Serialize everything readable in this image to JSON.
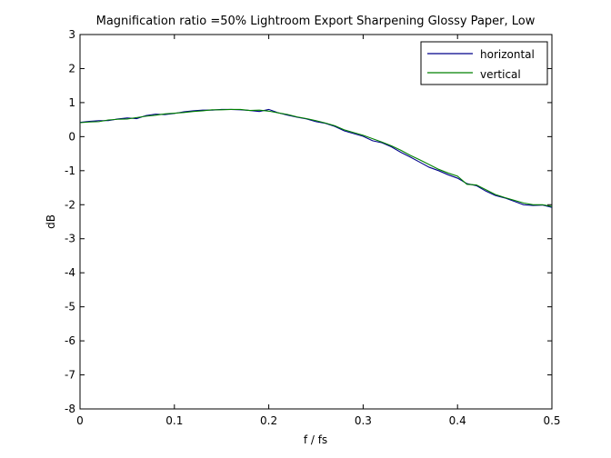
{
  "chart_data": {
    "type": "line",
    "title": "Magnification ratio =50% Lightroom Export Sharpening Glossy Paper, Low",
    "xlabel": "f / fs",
    "ylabel": "dB",
    "xlim": [
      0,
      0.5
    ],
    "ylim": [
      -8,
      3
    ],
    "xticks": [
      0,
      0.1,
      0.2,
      0.3,
      0.4,
      0.5
    ],
    "xtick_labels": [
      "0",
      "0.1",
      "0.2",
      "0.3",
      "0.4",
      "0.5"
    ],
    "yticks": [
      3,
      2,
      1,
      0,
      -1,
      -2,
      -3,
      -4,
      -5,
      -6,
      -7,
      -8
    ],
    "ytick_labels": [
      "3",
      "2",
      "1",
      "0",
      "-1",
      "-2",
      "-3",
      "-4",
      "-5",
      "-6",
      "-7",
      "-8"
    ],
    "grid": false,
    "legend_position": "top-right",
    "series": [
      {
        "name": "horizontal",
        "color": "#00008B",
        "x": [
          0,
          0.01,
          0.02,
          0.03,
          0.04,
          0.05,
          0.06,
          0.07,
          0.08,
          0.09,
          0.1,
          0.11,
          0.12,
          0.13,
          0.14,
          0.15,
          0.16,
          0.17,
          0.18,
          0.19,
          0.2,
          0.21,
          0.22,
          0.23,
          0.24,
          0.25,
          0.26,
          0.27,
          0.28,
          0.29,
          0.3,
          0.31,
          0.32,
          0.33,
          0.34,
          0.35,
          0.36,
          0.37,
          0.38,
          0.39,
          0.4,
          0.41,
          0.42,
          0.43,
          0.44,
          0.45,
          0.46,
          0.47,
          0.48,
          0.49,
          0.5
        ],
        "values": [
          0.42,
          0.45,
          0.47,
          0.47,
          0.52,
          0.55,
          0.53,
          0.62,
          0.66,
          0.65,
          0.68,
          0.73,
          0.76,
          0.78,
          0.78,
          0.8,
          0.8,
          0.79,
          0.77,
          0.74,
          0.8,
          0.7,
          0.63,
          0.57,
          0.52,
          0.44,
          0.39,
          0.3,
          0.17,
          0.09,
          0.01,
          -0.12,
          -0.18,
          -0.3,
          -0.46,
          -0.6,
          -0.75,
          -0.9,
          -1.0,
          -1.12,
          -1.22,
          -1.38,
          -1.44,
          -1.6,
          -1.73,
          -1.8,
          -1.9,
          -2.0,
          -2.02,
          -2.01,
          -2.08
        ]
      },
      {
        "name": "vertical",
        "color": "#008000",
        "x": [
          0,
          0.01,
          0.02,
          0.03,
          0.04,
          0.05,
          0.06,
          0.07,
          0.08,
          0.09,
          0.1,
          0.11,
          0.12,
          0.13,
          0.14,
          0.15,
          0.16,
          0.17,
          0.18,
          0.19,
          0.2,
          0.21,
          0.22,
          0.23,
          0.24,
          0.25,
          0.26,
          0.27,
          0.28,
          0.29,
          0.3,
          0.31,
          0.32,
          0.33,
          0.34,
          0.35,
          0.36,
          0.37,
          0.38,
          0.39,
          0.4,
          0.41,
          0.42,
          0.43,
          0.44,
          0.45,
          0.46,
          0.47,
          0.48,
          0.49,
          0.5
        ],
        "values": [
          0.41,
          0.43,
          0.44,
          0.49,
          0.51,
          0.52,
          0.56,
          0.6,
          0.63,
          0.67,
          0.69,
          0.71,
          0.74,
          0.76,
          0.79,
          0.79,
          0.8,
          0.8,
          0.77,
          0.78,
          0.75,
          0.7,
          0.65,
          0.58,
          0.53,
          0.47,
          0.4,
          0.32,
          0.2,
          0.12,
          0.04,
          -0.06,
          -0.16,
          -0.27,
          -0.4,
          -0.55,
          -0.68,
          -0.82,
          -0.96,
          -1.07,
          -1.16,
          -1.4,
          -1.42,
          -1.56,
          -1.7,
          -1.79,
          -1.87,
          -1.95,
          -2.0,
          -2.0,
          -2.05
        ]
      }
    ]
  }
}
